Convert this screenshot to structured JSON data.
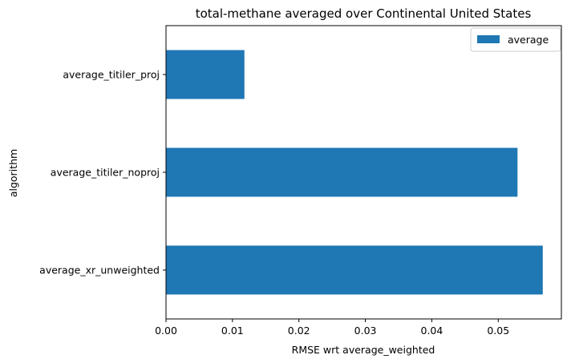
{
  "chart_data": {
    "type": "bar",
    "orientation": "horizontal",
    "title": "total-methane averaged over Continental United States",
    "xlabel": "RMSE wrt average_weighted",
    "ylabel": "algorithm",
    "categories": [
      "average_xr_unweighted",
      "average_titiler_noproj",
      "average_titiler_proj"
    ],
    "series": [
      {
        "name": "average",
        "values": [
          0.0567,
          0.0529,
          0.0118
        ],
        "color": "#1f77b4"
      }
    ],
    "xlim": [
      0,
      0.0595
    ],
    "xticks": [
      "0.00",
      "0.01",
      "0.02",
      "0.03",
      "0.04",
      "0.05"
    ],
    "grid": false,
    "legend": "top-right"
  }
}
